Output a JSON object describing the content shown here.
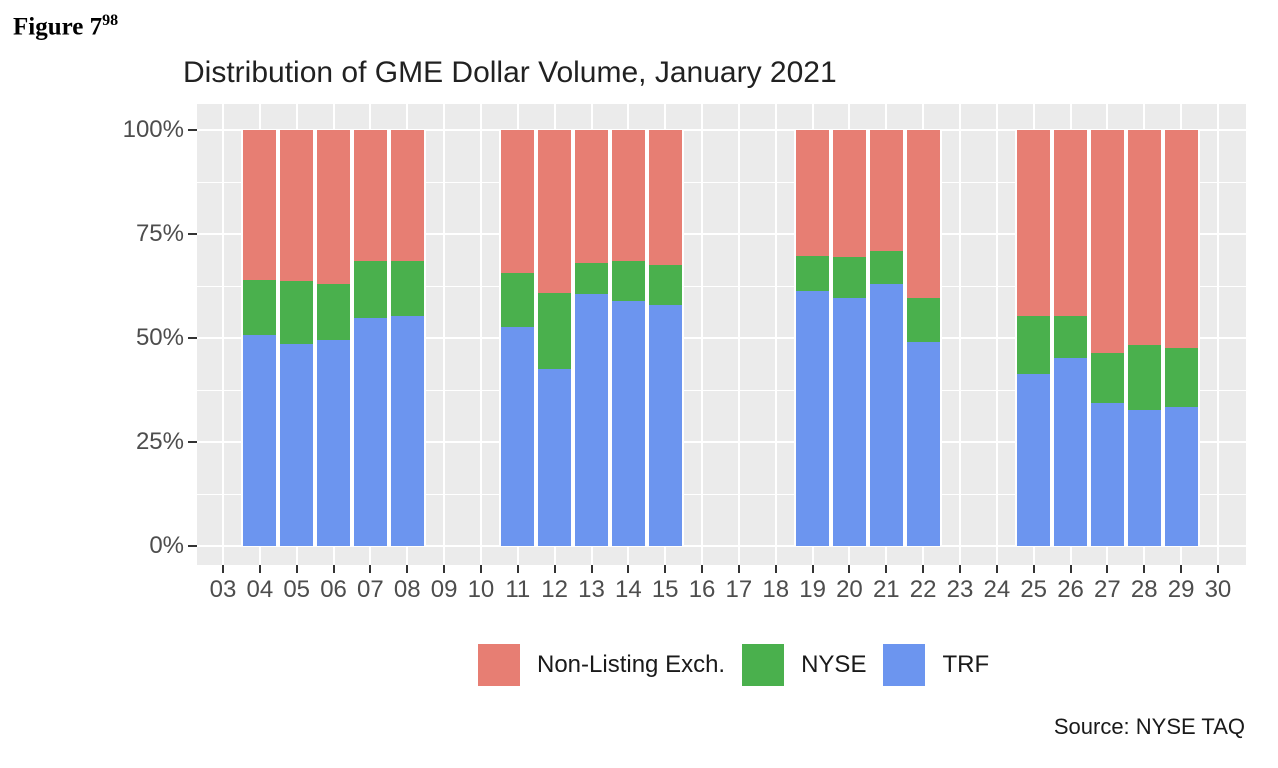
{
  "figure_label": {
    "text": "Figure 7",
    "footnote_ref": "98"
  },
  "source_note": "Source: NYSE TAQ",
  "colors": {
    "page_background": "#FFFFFF",
    "panel_background": "#EBEBEB",
    "gridline": "#FFFFFF",
    "axis_text": "#4D4D4D",
    "tick_mark": "#333333",
    "non_listing": "#E77E73",
    "nyse": "#4AB04D",
    "trf": "#6C95EF"
  },
  "chart_data": {
    "type": "bar",
    "variant": "stacked-100-percent",
    "title": "Distribution of GME Dollar Volume, January 2021",
    "xlabel": "",
    "ylabel": "",
    "ylim": [
      0,
      100
    ],
    "grid": {
      "major_pct": [
        0,
        25,
        50,
        75,
        100
      ],
      "minor_pct": [
        12.5,
        37.5,
        62.5,
        87.5
      ]
    },
    "legend_position": "bottom",
    "x_axis": {
      "tick_labels": [
        "03",
        "04",
        "05",
        "06",
        "07",
        "08",
        "09",
        "10",
        "11",
        "12",
        "13",
        "14",
        "15",
        "16",
        "17",
        "18",
        "19",
        "20",
        "21",
        "22",
        "23",
        "24",
        "25",
        "26",
        "27",
        "28",
        "29",
        "30"
      ]
    },
    "y_axis": {
      "tick_labels": [
        "0%",
        "25%",
        "50%",
        "75%",
        "100%"
      ]
    },
    "stack_order_bottom_to_top": [
      "trf",
      "nyse",
      "nle"
    ],
    "series": [
      {
        "key": "nle",
        "name": "Non-Listing Exch.",
        "color": "#E77E73"
      },
      {
        "key": "nyse",
        "name": "NYSE",
        "color": "#4AB04D"
      },
      {
        "key": "trf",
        "name": "TRF",
        "color": "#6C95EF"
      }
    ],
    "bars": [
      {
        "day": "04",
        "trf": 50.8,
        "nyse": 13.1,
        "nle": 36.1
      },
      {
        "day": "05",
        "trf": 48.6,
        "nyse": 15.0,
        "nle": 36.4
      },
      {
        "day": "06",
        "trf": 49.5,
        "nyse": 13.6,
        "nle": 36.9
      },
      {
        "day": "07",
        "trf": 54.9,
        "nyse": 13.6,
        "nle": 31.5
      },
      {
        "day": "08",
        "trf": 55.3,
        "nyse": 13.3,
        "nle": 31.4
      },
      {
        "day": "11",
        "trf": 52.7,
        "nyse": 12.9,
        "nle": 34.4
      },
      {
        "day": "12",
        "trf": 42.6,
        "nyse": 18.2,
        "nle": 39.2
      },
      {
        "day": "13",
        "trf": 60.5,
        "nyse": 7.5,
        "nle": 32.0
      },
      {
        "day": "14",
        "trf": 58.9,
        "nyse": 9.6,
        "nle": 31.5
      },
      {
        "day": "15",
        "trf": 58.0,
        "nyse": 9.6,
        "nle": 32.4
      },
      {
        "day": "19",
        "trf": 61.2,
        "nyse": 8.6,
        "nle": 30.2
      },
      {
        "day": "20",
        "trf": 59.7,
        "nyse": 9.7,
        "nle": 30.6
      },
      {
        "day": "21",
        "trf": 62.9,
        "nyse": 8.1,
        "nle": 29.0
      },
      {
        "day": "22",
        "trf": 49.0,
        "nyse": 10.6,
        "nle": 40.4
      },
      {
        "day": "25",
        "trf": 41.3,
        "nyse": 14.1,
        "nle": 44.6
      },
      {
        "day": "26",
        "trf": 45.2,
        "nyse": 10.2,
        "nle": 44.6
      },
      {
        "day": "27",
        "trf": 34.4,
        "nyse": 12.1,
        "nle": 53.5
      },
      {
        "day": "28",
        "trf": 32.7,
        "nyse": 15.7,
        "nle": 51.6
      },
      {
        "day": "29",
        "trf": 33.4,
        "nyse": 14.2,
        "nle": 52.4
      }
    ]
  }
}
